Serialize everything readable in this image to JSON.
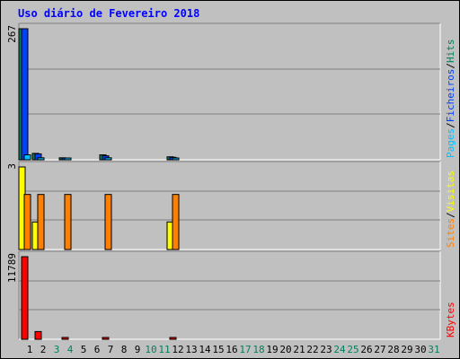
{
  "chart_data": {
    "type": "bar",
    "title": "Uso diário de Fevereiro 2018",
    "days": [
      "1",
      "2",
      "3",
      "4",
      "5",
      "6",
      "7",
      "8",
      "9",
      "10",
      "11",
      "12",
      "13",
      "14",
      "15",
      "16",
      "17",
      "18",
      "19",
      "20",
      "21",
      "22",
      "23",
      "24",
      "25",
      "26",
      "27",
      "28",
      "29",
      "30",
      "31"
    ],
    "weekend_days": [
      "3",
      "4",
      "10",
      "11",
      "17",
      "18",
      "24",
      "25",
      "31"
    ],
    "panels": [
      {
        "name": "hits-files-pages",
        "max_label": "267",
        "ymax": 267,
        "legend": [
          "Pages",
          "/",
          "Ficheiros",
          "/",
          "Hits"
        ],
        "series": [
          {
            "name": "Hits",
            "color": "#00805c",
            "values": [
              267,
              13,
              0,
              4,
              0,
              0,
              10,
              0,
              0,
              0,
              0,
              6,
              0,
              0,
              0,
              0,
              0,
              0,
              0,
              0,
              0,
              0,
              0,
              0,
              0,
              0,
              0,
              0,
              0,
              0,
              0
            ]
          },
          {
            "name": "Ficheiros",
            "color": "#0040ff",
            "values": [
              267,
              12,
              0,
              3,
              0,
              0,
              8,
              0,
              0,
              0,
              0,
              5,
              0,
              0,
              0,
              0,
              0,
              0,
              0,
              0,
              0,
              0,
              0,
              0,
              0,
              0,
              0,
              0,
              0,
              0,
              0
            ]
          },
          {
            "name": "Pages",
            "color": "#00c0ff",
            "values": [
              10,
              4,
              0,
              1,
              0,
              0,
              4,
              0,
              0,
              0,
              0,
              3,
              0,
              0,
              0,
              0,
              0,
              0,
              0,
              0,
              0,
              0,
              0,
              0,
              0,
              0,
              0,
              0,
              0,
              0,
              0
            ]
          }
        ]
      },
      {
        "name": "visits-sites",
        "max_label": "3",
        "ymax": 3,
        "legend": [
          "Sites",
          "/",
          "Visitas"
        ],
        "series": [
          {
            "name": "Visitas",
            "color": "#ffff00",
            "values": [
              3,
              1,
              0,
              0,
              0,
              0,
              0,
              0,
              0,
              0,
              0,
              1,
              0,
              0,
              0,
              0,
              0,
              0,
              0,
              0,
              0,
              0,
              0,
              0,
              0,
              0,
              0,
              0,
              0,
              0,
              0
            ]
          },
          {
            "name": "Sites",
            "color": "#ff8000",
            "values": [
              2,
              2,
              0,
              2,
              0,
              0,
              2,
              0,
              0,
              0,
              0,
              2,
              0,
              0,
              0,
              0,
              0,
              0,
              0,
              0,
              0,
              0,
              0,
              0,
              0,
              0,
              0,
              0,
              0,
              0,
              0
            ]
          }
        ]
      },
      {
        "name": "kbytes",
        "max_label": "11789",
        "ymax": 11789,
        "legend": [
          "KBytes"
        ],
        "series": [
          {
            "name": "KBytes",
            "color": "#ff0000",
            "values": [
              11789,
              1100,
              0,
              150,
              0,
              0,
              150,
              0,
              0,
              0,
              0,
              150,
              0,
              0,
              0,
              0,
              0,
              0,
              0,
              0,
              0,
              0,
              0,
              0,
              0,
              0,
              0,
              0,
              0,
              0,
              0
            ]
          }
        ]
      }
    ],
    "colors": {
      "background": "#c0c0c0",
      "plot": "#c0c0c0",
      "grid": "#808080",
      "title": "#0000ff",
      "weekday_label": "#000000",
      "weekend_label": "#00805c",
      "legend_separator": "#000000"
    }
  }
}
